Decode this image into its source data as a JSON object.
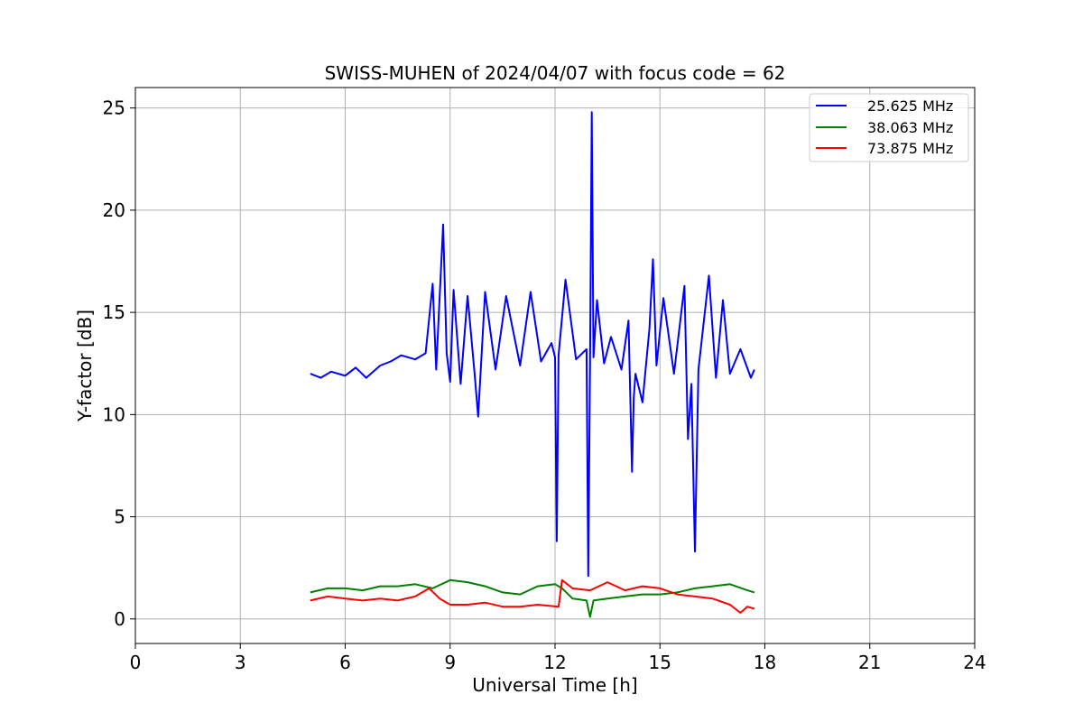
{
  "chart_data": {
    "type": "line",
    "title": "SWISS-MUHEN of 2024/04/07 with focus code = 62",
    "xlabel": "Universal Time [h]",
    "ylabel": "Y-factor [dB]",
    "xlim": [
      0,
      24
    ],
    "ylim": [
      -1.2,
      26
    ],
    "xticks": [
      0,
      3,
      6,
      9,
      12,
      15,
      18,
      21,
      24
    ],
    "yticks": [
      0,
      5,
      10,
      15,
      20,
      25
    ],
    "grid": true,
    "legend_position": "top-right",
    "series": [
      {
        "name": "25.625 MHz",
        "color": "#0000ff",
        "x": [
          5.0,
          5.3,
          5.6,
          6.0,
          6.3,
          6.6,
          7.0,
          7.3,
          7.6,
          8.0,
          8.3,
          8.5,
          8.6,
          8.8,
          8.9,
          9.0,
          9.1,
          9.3,
          9.5,
          9.7,
          9.8,
          10.0,
          10.3,
          10.6,
          11.0,
          11.3,
          11.6,
          11.9,
          12.0,
          12.05,
          12.1,
          12.3,
          12.6,
          12.9,
          12.95,
          13.0,
          13.05,
          13.1,
          13.2,
          13.4,
          13.6,
          13.9,
          14.1,
          14.2,
          14.25,
          14.3,
          14.5,
          14.7,
          14.8,
          14.9,
          15.1,
          15.4,
          15.7,
          15.8,
          15.9,
          16.0,
          16.1,
          16.4,
          16.6,
          16.8,
          17.0,
          17.3,
          17.6,
          17.7
        ],
        "y": [
          12.0,
          11.8,
          12.1,
          11.9,
          12.3,
          11.8,
          12.4,
          12.6,
          12.9,
          12.7,
          13.0,
          16.4,
          12.2,
          19.3,
          13.0,
          11.6,
          16.1,
          11.5,
          15.8,
          12.0,
          9.9,
          16.0,
          12.2,
          15.8,
          12.4,
          16.0,
          12.6,
          13.5,
          12.8,
          3.8,
          12.9,
          16.6,
          12.7,
          13.2,
          2.1,
          12.6,
          24.8,
          12.8,
          15.6,
          12.5,
          13.8,
          12.2,
          14.6,
          7.2,
          10.8,
          12.0,
          10.6,
          14.2,
          17.6,
          12.4,
          15.7,
          12.0,
          16.3,
          8.8,
          11.5,
          3.3,
          12.2,
          16.8,
          11.8,
          15.6,
          12.0,
          13.2,
          11.8,
          12.2
        ]
      },
      {
        "name": "38.063 MHz",
        "color": "#008000",
        "x": [
          5.0,
          5.5,
          6.0,
          6.5,
          7.0,
          7.5,
          8.0,
          8.5,
          9.0,
          9.5,
          10.0,
          10.5,
          11.0,
          11.5,
          12.0,
          12.2,
          12.5,
          12.9,
          13.0,
          13.1,
          13.5,
          14.0,
          14.5,
          15.0,
          15.5,
          16.0,
          16.5,
          17.0,
          17.5,
          17.7
        ],
        "y": [
          1.3,
          1.5,
          1.5,
          1.4,
          1.6,
          1.6,
          1.7,
          1.5,
          1.9,
          1.8,
          1.6,
          1.3,
          1.2,
          1.6,
          1.7,
          1.5,
          1.0,
          0.9,
          0.1,
          0.9,
          1.0,
          1.1,
          1.2,
          1.2,
          1.3,
          1.5,
          1.6,
          1.7,
          1.4,
          1.3
        ]
      },
      {
        "name": "73.875 MHz",
        "color": "#ff0000",
        "x": [
          5.0,
          5.5,
          6.0,
          6.5,
          7.0,
          7.5,
          8.0,
          8.4,
          8.7,
          9.0,
          9.5,
          10.0,
          10.5,
          11.0,
          11.5,
          12.1,
          12.2,
          12.5,
          13.0,
          13.5,
          14.0,
          14.5,
          15.0,
          15.5,
          16.0,
          16.5,
          17.0,
          17.3,
          17.5,
          17.7
        ],
        "y": [
          0.9,
          1.1,
          1.0,
          0.9,
          1.0,
          0.9,
          1.1,
          1.5,
          1.0,
          0.7,
          0.7,
          0.8,
          0.6,
          0.6,
          0.7,
          0.6,
          1.9,
          1.5,
          1.4,
          1.8,
          1.4,
          1.6,
          1.5,
          1.2,
          1.1,
          1.0,
          0.7,
          0.3,
          0.6,
          0.5
        ]
      }
    ]
  }
}
